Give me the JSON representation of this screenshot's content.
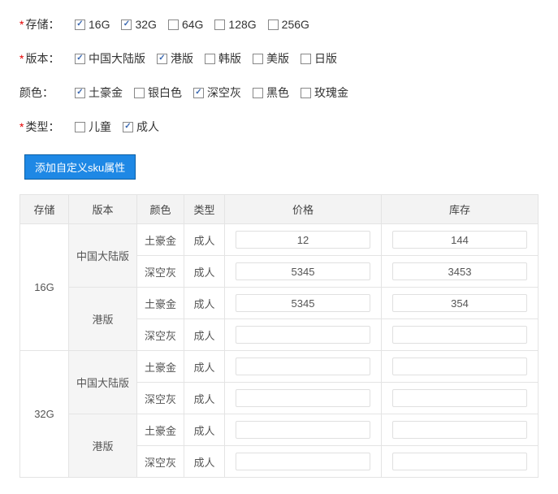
{
  "attributes": [
    {
      "key": "storage",
      "label": "存储：",
      "required": true,
      "options": [
        {
          "label": "16G",
          "checked": true
        },
        {
          "label": "32G",
          "checked": true
        },
        {
          "label": "64G",
          "checked": false
        },
        {
          "label": "128G",
          "checked": false
        },
        {
          "label": "256G",
          "checked": false
        }
      ]
    },
    {
      "key": "version",
      "label": "版本：",
      "required": true,
      "options": [
        {
          "label": "中国大陆版",
          "checked": true
        },
        {
          "label": "港版",
          "checked": true
        },
        {
          "label": "韩版",
          "checked": false
        },
        {
          "label": "美版",
          "checked": false
        },
        {
          "label": "日版",
          "checked": false
        }
      ]
    },
    {
      "key": "color",
      "label": "颜色：",
      "required": false,
      "options": [
        {
          "label": "土豪金",
          "checked": true
        },
        {
          "label": "银白色",
          "checked": false
        },
        {
          "label": "深空灰",
          "checked": true
        },
        {
          "label": "黑色",
          "checked": false
        },
        {
          "label": "玫瑰金",
          "checked": false
        }
      ]
    },
    {
      "key": "type",
      "label": "类型：",
      "required": true,
      "options": [
        {
          "label": "儿童",
          "checked": false
        },
        {
          "label": "成人",
          "checked": true
        }
      ]
    }
  ],
  "addButton": "添加自定义sku属性",
  "table": {
    "headers": {
      "storage": "存储",
      "version": "版本",
      "color": "颜色",
      "type": "类型",
      "price": "价格",
      "stock": "库存"
    },
    "rows": [
      {
        "storage": "16G",
        "version": "中国大陆版",
        "color": "土豪金",
        "type": "成人",
        "price": "12",
        "stock": "144"
      },
      {
        "storage": "16G",
        "version": "中国大陆版",
        "color": "深空灰",
        "type": "成人",
        "price": "5345",
        "stock": "3453"
      },
      {
        "storage": "16G",
        "version": "港版",
        "color": "土豪金",
        "type": "成人",
        "price": "5345",
        "stock": "354"
      },
      {
        "storage": "16G",
        "version": "港版",
        "color": "深空灰",
        "type": "成人",
        "price": "",
        "stock": ""
      },
      {
        "storage": "32G",
        "version": "中国大陆版",
        "color": "土豪金",
        "type": "成人",
        "price": "",
        "stock": ""
      },
      {
        "storage": "32G",
        "version": "中国大陆版",
        "color": "深空灰",
        "type": "成人",
        "price": "",
        "stock": ""
      },
      {
        "storage": "32G",
        "version": "港版",
        "color": "土豪金",
        "type": "成人",
        "price": "",
        "stock": ""
      },
      {
        "storage": "32G",
        "version": "港版",
        "color": "深空灰",
        "type": "成人",
        "price": "",
        "stock": ""
      }
    ]
  }
}
